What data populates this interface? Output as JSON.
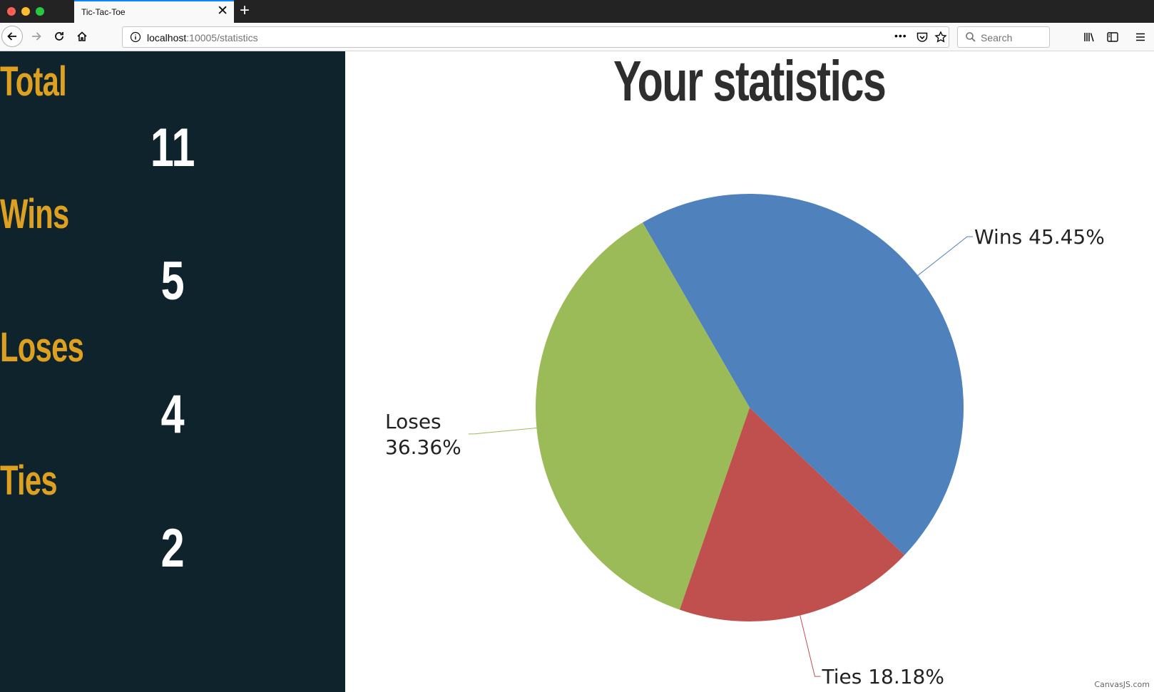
{
  "browser": {
    "tab_title": "Tic-Tac-Toe",
    "tab_close": "✕",
    "new_tab": "+",
    "url_host": "localhost",
    "url_path": ":10005/statistics",
    "search_placeholder": "Search",
    "more_actions": "•••"
  },
  "sidebar": {
    "stats": [
      {
        "label": "Total",
        "value": "11"
      },
      {
        "label": "Wins",
        "value": "5"
      },
      {
        "label": "Loses",
        "value": "4"
      },
      {
        "label": "Ties",
        "value": "2"
      }
    ]
  },
  "main": {
    "title": "Your statistics",
    "credit": "CanvasJS.com"
  },
  "chart_data": {
    "type": "pie",
    "title": "",
    "categories": [
      "Wins",
      "Ties",
      "Loses"
    ],
    "values": [
      45.45,
      18.18,
      36.36
    ],
    "labels": [
      "Wins 45.45%",
      "Ties 18.18%",
      "Loses 36.36%"
    ],
    "colors": [
      "#4f81bc",
      "#c0504e",
      "#9bbb58"
    ],
    "start_angle_degrees": -120,
    "legend": "none"
  }
}
